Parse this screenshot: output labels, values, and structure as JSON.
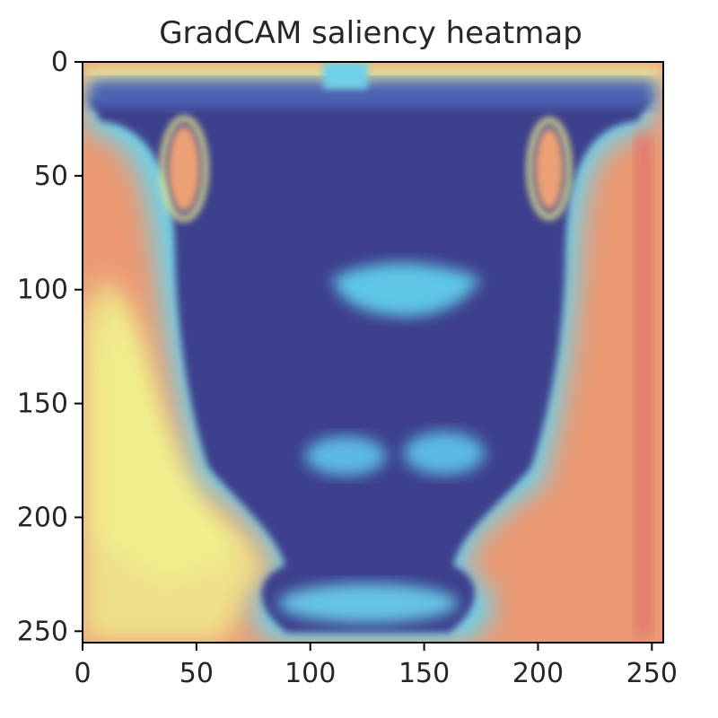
{
  "chart_data": {
    "type": "heatmap",
    "title": "GradCAM saliency heatmap",
    "xlabel": "",
    "ylabel": "",
    "xlim": [
      0,
      255
    ],
    "ylim": [
      255,
      0
    ],
    "x_ticks": [
      0,
      50,
      100,
      150,
      200,
      250
    ],
    "y_ticks": [
      0,
      50,
      100,
      150,
      200,
      250
    ],
    "x_tick_labels": [
      "0",
      "50",
      "100",
      "150",
      "200",
      "250"
    ],
    "y_tick_labels": [
      "0",
      "50",
      "100",
      "150",
      "200",
      "250"
    ],
    "colormap": "jet",
    "colors": {
      "background_hot": "#e98f74",
      "background_warm": "#eed98d",
      "object_cold": "#3c3d8a",
      "mid_cyan": "#5ec6e6",
      "highlight_yellow": "#f1ee8c"
    },
    "grid": false,
    "legend": "none",
    "image_content": "vase silhouette (low saliency) on high-saliency background"
  }
}
